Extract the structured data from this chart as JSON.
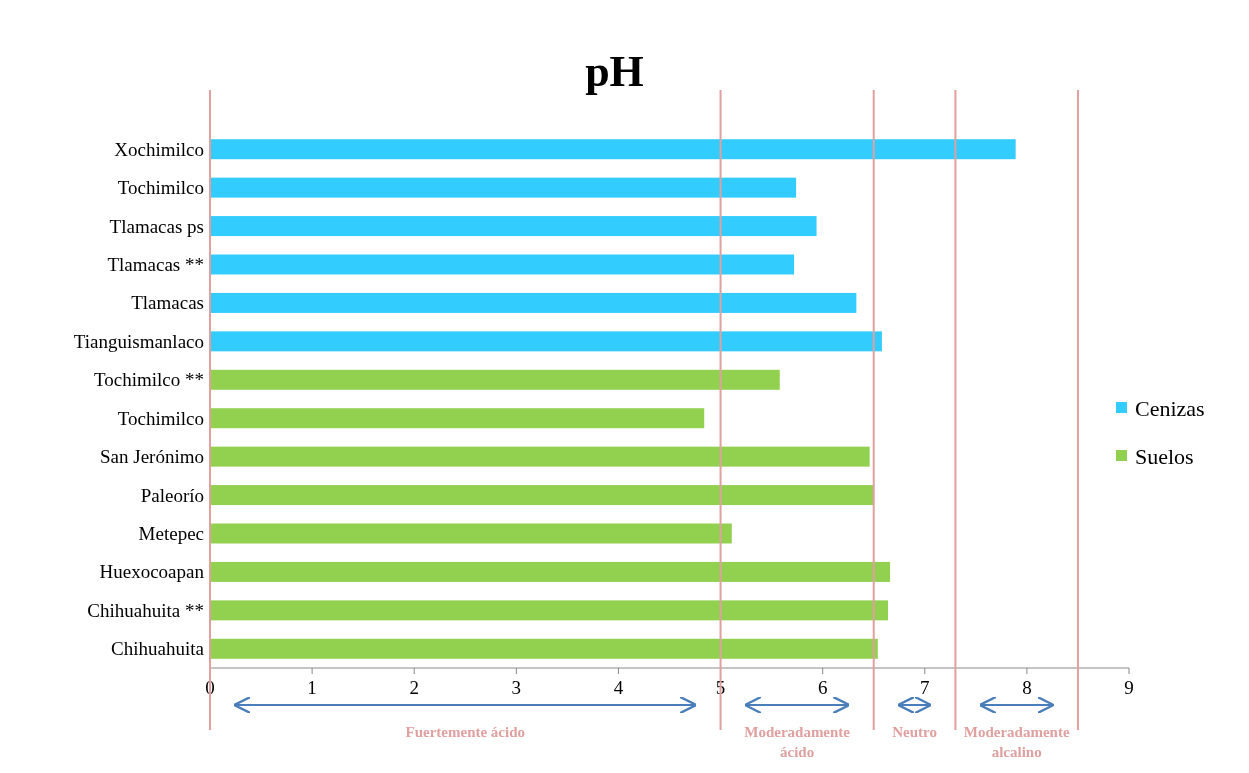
{
  "chart_data": {
    "type": "bar",
    "orientation": "horizontal",
    "title": "pH",
    "categories": [
      "Xochimilco",
      "Tochimilco",
      "Tlamacas ps",
      "Tlamacas **",
      "Tlamacas",
      "Tianguismanlaco",
      "Tochimilco **",
      "Tochimilco",
      "San Jerónimo",
      "Paleorío",
      "Metepec",
      "Huexocoapan",
      "Chihuahuita **",
      "Chihuahuita"
    ],
    "series": [
      {
        "name": "Cenizas",
        "color": "#33ccff",
        "values": [
          7.89,
          5.74,
          5.94,
          5.72,
          6.33,
          6.58,
          null,
          null,
          null,
          null,
          null,
          null,
          null,
          null
        ]
      },
      {
        "name": "Suelos",
        "color": "#92d050",
        "values": [
          null,
          null,
          null,
          null,
          null,
          null,
          5.58,
          4.84,
          6.46,
          6.5,
          5.11,
          6.66,
          6.64,
          6.54
        ]
      }
    ],
    "xlim": [
      0,
      9
    ],
    "xticks": [
      0,
      1,
      2,
      3,
      4,
      5,
      6,
      7,
      8,
      9
    ],
    "grid": false,
    "legend": "right",
    "ref_lines": [
      {
        "axis": "x",
        "value": 0,
        "color": "#e0a0a0"
      },
      {
        "axis": "x",
        "value": 5,
        "color": "#e0a0a0"
      },
      {
        "axis": "x",
        "value": 6.5,
        "color": "#e0a0a0"
      },
      {
        "axis": "x",
        "value": 7.3,
        "color": "#e0a0a0"
      },
      {
        "axis": "x",
        "value": 8.5,
        "color": "#e0a0a0"
      }
    ],
    "annotations": [
      "Fuertemente ácido",
      "Moderadamente ácido",
      "Neutro",
      "Moderadamente alcalino"
    ]
  }
}
